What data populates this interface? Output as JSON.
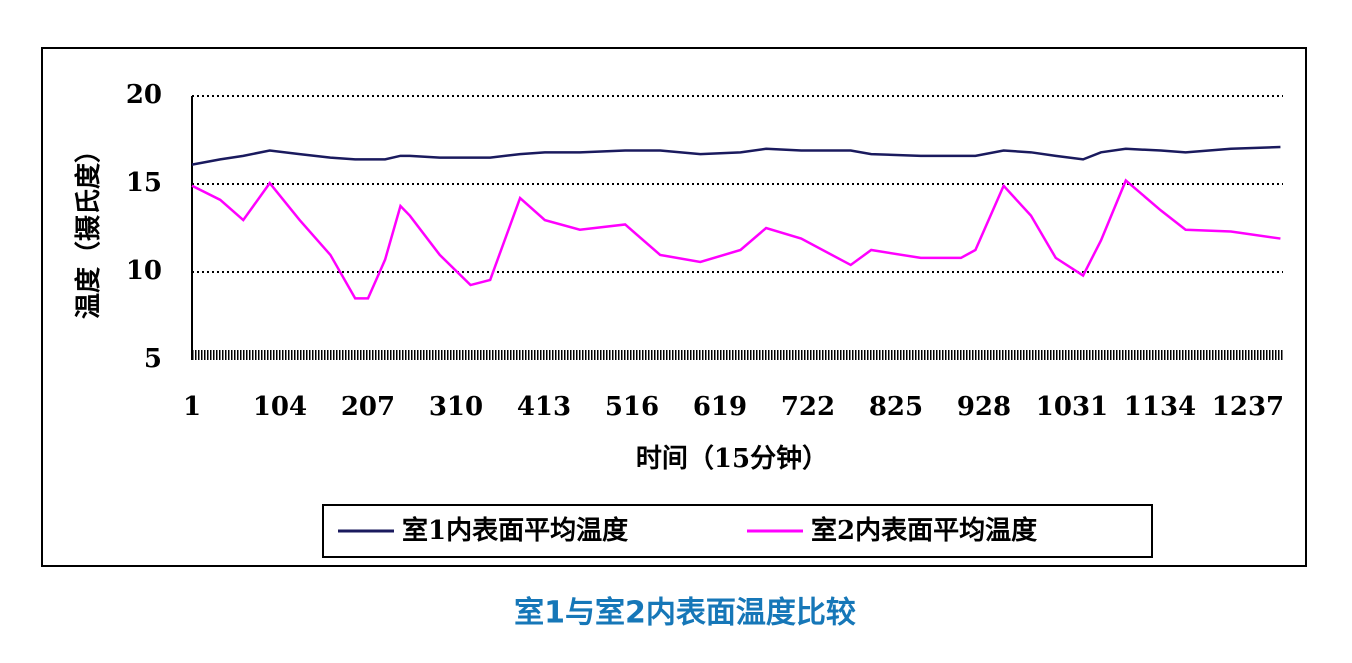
{
  "chart_data": {
    "type": "line",
    "caption": "室1与室2内表面温度比较",
    "x_label": "时间（15分钟）",
    "y_label": "温度（摄氏度）",
    "x": [
      1,
      34,
      61,
      92,
      127,
      163,
      192,
      207,
      227,
      245,
      256,
      291,
      327,
      350,
      385,
      414,
      455,
      508,
      549,
      596,
      643,
      673,
      714,
      772,
      796,
      854,
      901,
      918,
      951,
      983,
      1012,
      1044,
      1065,
      1094,
      1135,
      1164,
      1217,
      1275
    ],
    "series": [
      {
        "name": "室1内表面平均温度",
        "color": "#1a1a5e",
        "values": [
          16.1,
          16.4,
          16.6,
          16.9,
          16.7,
          16.5,
          16.4,
          16.4,
          16.4,
          16.6,
          16.6,
          16.5,
          16.5,
          16.5,
          16.7,
          16.8,
          16.8,
          16.9,
          16.9,
          16.7,
          16.8,
          17.0,
          16.9,
          16.9,
          16.7,
          16.6,
          16.6,
          16.6,
          16.9,
          16.8,
          16.6,
          16.4,
          16.8,
          17.0,
          16.9,
          16.8,
          17.0,
          17.1
        ]
      },
      {
        "name": "室2内表面平均温度",
        "color": "#ff00ff",
        "values": [
          14.9,
          14.1,
          12.95,
          15.05,
          12.95,
          10.97,
          8.5,
          8.5,
          10.7,
          13.75,
          13.2,
          10.97,
          9.26,
          9.55,
          14.2,
          12.95,
          12.4,
          12.7,
          10.97,
          10.57,
          11.25,
          12.5,
          11.9,
          10.4,
          11.25,
          10.8,
          10.8,
          11.25,
          14.9,
          13.2,
          10.8,
          9.8,
          11.8,
          15.2,
          13.5,
          12.4,
          12.3,
          11.9
        ]
      }
    ],
    "xlim": [
      1,
      1278
    ],
    "xticks": [
      1,
      104,
      207,
      310,
      413,
      516,
      619,
      722,
      825,
      928,
      1031,
      1134,
      1237
    ],
    "ylim": [
      5,
      20
    ],
    "yticks": [
      5,
      10,
      15,
      20
    ],
    "grid": true
  }
}
